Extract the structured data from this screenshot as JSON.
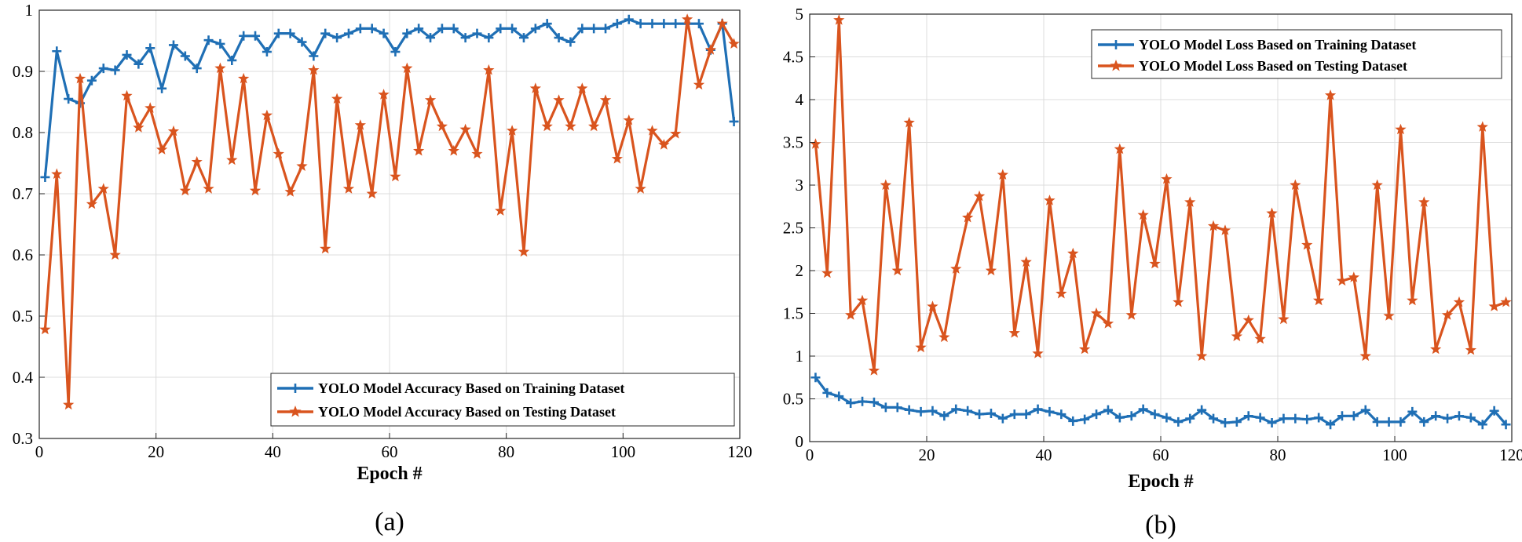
{
  "chart_data": [
    {
      "type": "line",
      "caption": "(a)",
      "xlabel": "Epoch #",
      "ylabel": "",
      "xlim": [
        0,
        120
      ],
      "ylim": [
        0.3,
        1
      ],
      "xticks": [
        0,
        20,
        40,
        60,
        80,
        100,
        120
      ],
      "yticks": [
        0.3,
        0.4,
        0.5,
        0.6,
        0.7,
        0.8,
        0.9,
        1
      ],
      "ytick_labels": [
        "0.3",
        "0.4",
        "0.5",
        "0.6",
        "0.7",
        "0.8",
        "0.9",
        "1"
      ],
      "grid": true,
      "legend_position": "bottom-right",
      "x": [
        1,
        3,
        5,
        7,
        9,
        11,
        13,
        15,
        17,
        19,
        21,
        23,
        25,
        27,
        29,
        31,
        33,
        35,
        37,
        39,
        41,
        43,
        45,
        47,
        49,
        51,
        53,
        55,
        57,
        59,
        61,
        63,
        65,
        67,
        69,
        71,
        73,
        75,
        77,
        79,
        81,
        83,
        85,
        87,
        89,
        91,
        93,
        95,
        97,
        99,
        101,
        103,
        105,
        107,
        109,
        111,
        113,
        115,
        117,
        119
      ],
      "series": [
        {
          "name": "YOLO Model Accuracy Based on Training Dataset",
          "color": "#1f6fb5",
          "marker": "plus",
          "values": [
            0.727,
            0.933,
            0.855,
            0.848,
            0.885,
            0.905,
            0.902,
            0.927,
            0.912,
            0.938,
            0.872,
            0.943,
            0.925,
            0.905,
            0.951,
            0.945,
            0.918,
            0.958,
            0.958,
            0.932,
            0.962,
            0.962,
            0.948,
            0.925,
            0.962,
            0.955,
            0.962,
            0.97,
            0.97,
            0.962,
            0.932,
            0.962,
            0.97,
            0.955,
            0.97,
            0.97,
            0.955,
            0.962,
            0.955,
            0.97,
            0.97,
            0.955,
            0.97,
            0.978,
            0.955,
            0.948,
            0.97,
            0.97,
            0.97,
            0.978,
            0.985,
            0.978,
            0.978,
            0.978,
            0.978,
            0.978,
            0.978,
            0.935,
            0.978,
            0.818
          ]
        },
        {
          "name": "YOLO Model Accuracy Based on Testing Dataset",
          "color": "#d9541e",
          "marker": "star",
          "values": [
            0.478,
            0.732,
            0.355,
            0.888,
            0.683,
            0.708,
            0.6,
            0.86,
            0.808,
            0.84,
            0.772,
            0.802,
            0.705,
            0.752,
            0.708,
            0.905,
            0.755,
            0.888,
            0.705,
            0.828,
            0.765,
            0.703,
            0.745,
            0.902,
            0.61,
            0.855,
            0.708,
            0.812,
            0.7,
            0.862,
            0.728,
            0.905,
            0.77,
            0.853,
            0.81,
            0.77,
            0.805,
            0.765,
            0.902,
            0.672,
            0.803,
            0.605,
            0.872,
            0.81,
            0.853,
            0.81,
            0.872,
            0.81,
            0.853,
            0.757,
            0.82,
            0.708,
            0.803,
            0.78,
            0.798,
            0.985,
            0.878,
            0.935,
            0.978,
            0.945
          ]
        }
      ]
    },
    {
      "type": "line",
      "caption": "(b)",
      "xlabel": "Epoch #",
      "ylabel": "",
      "xlim": [
        0,
        120
      ],
      "ylim": [
        0,
        5
      ],
      "xticks": [
        0,
        20,
        40,
        60,
        80,
        100,
        120
      ],
      "yticks": [
        0,
        0.5,
        1,
        1.5,
        2,
        2.5,
        3,
        3.5,
        4,
        4.5,
        5
      ],
      "ytick_labels": [
        "0",
        "0.5",
        "1",
        "1.5",
        "2",
        "2.5",
        "3",
        "3.5",
        "4",
        "4.5",
        "5"
      ],
      "grid": true,
      "legend_position": "top-right",
      "x": [
        1,
        3,
        5,
        7,
        9,
        11,
        13,
        15,
        17,
        19,
        21,
        23,
        25,
        27,
        29,
        31,
        33,
        35,
        37,
        39,
        41,
        43,
        45,
        47,
        49,
        51,
        53,
        55,
        57,
        59,
        61,
        63,
        65,
        67,
        69,
        71,
        73,
        75,
        77,
        79,
        81,
        83,
        85,
        87,
        89,
        91,
        93,
        95,
        97,
        99,
        101,
        103,
        105,
        107,
        109,
        111,
        113,
        115,
        117,
        119
      ],
      "series": [
        {
          "name": "YOLO Model Loss Based on Training  Dataset",
          "color": "#1f6fb5",
          "marker": "plus",
          "values": [
            0.75,
            0.57,
            0.53,
            0.45,
            0.47,
            0.46,
            0.4,
            0.4,
            0.37,
            0.35,
            0.36,
            0.3,
            0.38,
            0.36,
            0.32,
            0.33,
            0.27,
            0.32,
            0.32,
            0.38,
            0.35,
            0.32,
            0.24,
            0.26,
            0.32,
            0.37,
            0.28,
            0.3,
            0.38,
            0.32,
            0.28,
            0.23,
            0.27,
            0.37,
            0.27,
            0.22,
            0.23,
            0.3,
            0.28,
            0.22,
            0.27,
            0.27,
            0.26,
            0.28,
            0.2,
            0.3,
            0.3,
            0.37,
            0.23,
            0.23,
            0.23,
            0.35,
            0.23,
            0.3,
            0.27,
            0.3,
            0.28,
            0.2,
            0.36,
            0.2
          ]
        },
        {
          "name": "YOLO Model Loss Based on Testing Dataset",
          "color": "#d9541e",
          "marker": "star",
          "values": [
            3.48,
            1.97,
            4.93,
            1.48,
            1.65,
            0.83,
            3.0,
            2.0,
            3.73,
            1.1,
            1.58,
            1.22,
            2.02,
            2.62,
            2.87,
            2.0,
            3.12,
            1.27,
            2.1,
            1.03,
            2.82,
            1.73,
            2.2,
            1.08,
            1.5,
            1.38,
            3.42,
            1.48,
            2.65,
            2.08,
            3.07,
            1.63,
            2.8,
            1.0,
            2.52,
            2.47,
            1.23,
            1.42,
            1.2,
            2.67,
            1.43,
            3.0,
            2.3,
            1.65,
            4.05,
            1.88,
            1.92,
            1.0,
            3.0,
            1.47,
            3.65,
            1.65,
            2.8,
            1.08,
            1.48,
            1.63,
            1.07,
            3.68,
            1.58,
            1.63
          ]
        }
      ]
    }
  ]
}
